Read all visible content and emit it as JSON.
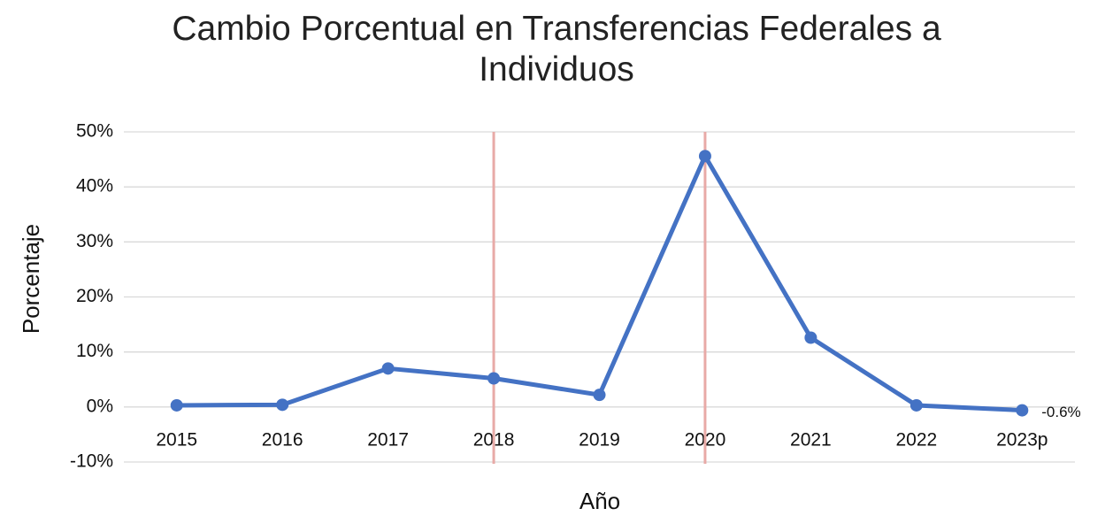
{
  "chart_data": {
    "type": "line",
    "title": "Cambio Porcentual en Transferencias Federales a Individuos",
    "x_label": "Año",
    "y_label": "Porcentaje",
    "categories": [
      "2015",
      "2016",
      "2017",
      "2018",
      "2019",
      "2020",
      "2021",
      "2022",
      "2023p"
    ],
    "series": [
      {
        "name": "Cambio porcentual",
        "color": "#4472c4",
        "values": [
          0.3,
          0.4,
          7.0,
          5.2,
          2.2,
          45.6,
          12.6,
          0.3,
          -0.6
        ],
        "value_labels": [
          null,
          null,
          null,
          null,
          null,
          null,
          null,
          null,
          "-0.6%"
        ]
      }
    ],
    "ylim": [
      -10,
      50
    ],
    "yticks": [
      {
        "value": -10,
        "label": "-10%"
      },
      {
        "value": 0,
        "label": "0%"
      },
      {
        "value": 10,
        "label": "10%"
      },
      {
        "value": 20,
        "label": "20%"
      },
      {
        "value": 30,
        "label": "30%"
      },
      {
        "value": 40,
        "label": "40%"
      },
      {
        "value": 50,
        "label": "50%"
      }
    ],
    "grid": true,
    "vline_categories": [
      "2018",
      "2020"
    ],
    "vline_color": "#e8aaa7"
  }
}
